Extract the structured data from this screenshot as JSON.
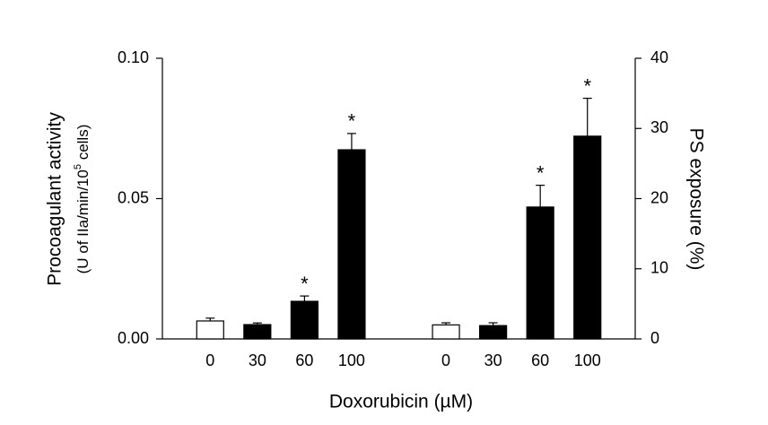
{
  "chart_data": {
    "type": "bar",
    "categories": [
      "0",
      "30",
      "60",
      "100",
      null,
      "0",
      "30",
      "60",
      "100"
    ],
    "xlabel": "Doxorubicin (µM)",
    "ylabel": "Procoagulant activity",
    "ylabel_sub": {
      "before": "(U of IIa/min/10",
      "sup": "5",
      "after": " cells)"
    },
    "y2label": "PS exposure (%)",
    "ylim": [
      0,
      0.1
    ],
    "yticks": [
      {
        "value": 0,
        "label": "0.00"
      },
      {
        "value": 0.05,
        "label": "0.05"
      },
      {
        "value": 0.1,
        "label": "0.10"
      }
    ],
    "y2lim": [
      0,
      40
    ],
    "y2ticks": [
      0,
      10,
      20,
      30,
      40
    ],
    "series": [
      {
        "values": [
          0.0064,
          0.0051,
          0.0134,
          0.0674,
          null,
          null,
          null,
          null,
          null
        ],
        "errors": [
          0.001,
          0.0006,
          0.0019,
          0.0058,
          null,
          null,
          null,
          null,
          null
        ],
        "colors": [
          "#ffffff",
          "#000000",
          "#000000",
          "#000000",
          null,
          null,
          null,
          null,
          null
        ],
        "significance": [
          null,
          null,
          "*",
          "*",
          null,
          null,
          null,
          null,
          null
        ]
      },
      {
        "axis": "y2",
        "values": [
          null,
          null,
          null,
          null,
          null,
          2.0,
          1.9,
          18.8,
          28.9
        ],
        "errors": [
          null,
          null,
          null,
          null,
          null,
          0.3,
          0.4,
          3.1,
          5.4
        ],
        "colors": [
          null,
          null,
          null,
          null,
          null,
          "#ffffff",
          "#000000",
          "#000000",
          "#000000"
        ],
        "significance": [
          null,
          null,
          null,
          null,
          null,
          null,
          null,
          "*",
          "*"
        ]
      }
    ]
  }
}
